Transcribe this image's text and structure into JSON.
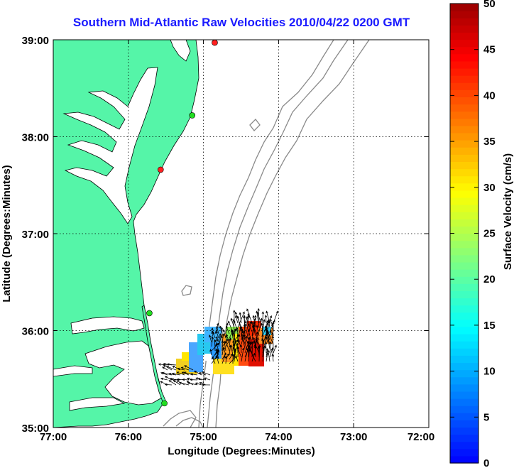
{
  "title": "Southern Mid-Atlantic Raw Velocities 2010/04/22 0200 GMT",
  "map": {
    "xlabel": "Longitude (Degrees:Minutes)",
    "ylabel": "Latitude (Degrees:Minutes)",
    "x_ticks": [
      "77:00",
      "76:00",
      "75:00",
      "74:00",
      "73:00",
      "72:00"
    ],
    "y_ticks": [
      "39:00",
      "38:00",
      "37:00",
      "36:00",
      "35:00"
    ],
    "lon_range": [
      -77,
      -72
    ],
    "lat_range": [
      35,
      39
    ],
    "grid": "dotted",
    "land_color": "#55f5a8",
    "water_color": "#ffffff",
    "bathymetry_color": "#8a8a8a"
  },
  "colorbar": {
    "label": "Surface Velocity (cm/s)",
    "ticks": [
      "0",
      "5",
      "10",
      "15",
      "20",
      "25",
      "30",
      "35",
      "40",
      "45",
      "50"
    ],
    "range": [
      0,
      50
    ],
    "colormap": "jet"
  },
  "stations": [
    {
      "lon": -74.85,
      "lat": 38.97,
      "color": "#ff2020"
    },
    {
      "lon": -75.15,
      "lat": 38.22,
      "color": "#22dd22"
    },
    {
      "lon": -75.57,
      "lat": 37.66,
      "color": "#ff2020"
    },
    {
      "lon": -75.72,
      "lat": 36.18,
      "color": "#22dd22"
    },
    {
      "lon": -75.52,
      "lat": 35.25,
      "color": "#22dd22"
    }
  ]
}
